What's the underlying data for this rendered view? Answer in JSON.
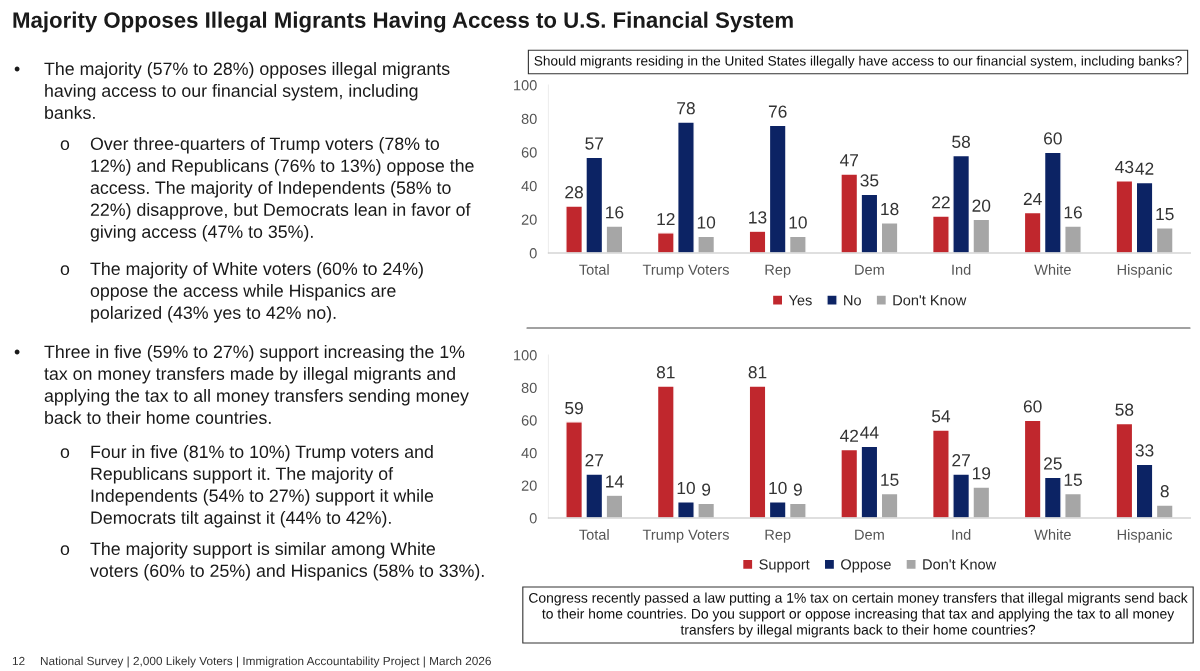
{
  "chart_data": [
    {
      "type": "bar",
      "title": "Majority Opposes Illegal Migrants Having Access to U.S. Financial System",
      "subtitle": "Should migrants residing in the United States illegally have access to our financial system, including banks?",
      "categories": [
        "Total",
        "Trump Voters",
        "Rep",
        "Dem",
        "Ind",
        "White",
        "Hispanic"
      ],
      "series": [
        {
          "name": "Yes",
          "color": "#c0272d",
          "values": [
            28,
            12,
            13,
            47,
            22,
            24,
            43
          ]
        },
        {
          "name": "No",
          "color": "#0c2364",
          "values": [
            57,
            78,
            76,
            35,
            58,
            60,
            42
          ]
        },
        {
          "name": "Don't Know",
          "color": "#a6a6a6",
          "values": [
            16,
            10,
            10,
            18,
            20,
            16,
            15
          ]
        }
      ],
      "ylim": [
        0,
        100
      ],
      "yticks": [
        0,
        20,
        40,
        60,
        80,
        100
      ],
      "grid": false,
      "legend": "bottom",
      "data_labels": true,
      "annotations": [
        "• The majority (57% to 28%) opposes illegal migrants\nhaving access to our financial system, including\nbanks.",
        "o Over three-quarters of Trump voters (78% to\n12%) and Republicans (76% to 13%) oppose the\naccess. The majority of Independents (58% to\n22%) disapprove, but Democrats lean in favor of\ngiving access (47% to 35%).",
        "o The majority of White voters (60% to 24%)\noppose the access while Hispanics are\npolarized (43% yes to 42% no).",
        "12",
        "National Survey | 2,000 Likely Voters | Immigration Accountability Project | March 2026"
      ]
    },
    {
      "type": "bar",
      "subtitle": "Congress recently passed a law putting a 1% tax on certain money transfers that illegal migrants send back\nto their home countries. Do you support or oppose increasing that tax and applying the tax to all money\ntransfers by illegal migrants back to their home countries?",
      "categories": [
        "Total",
        "Trump Voters",
        "Rep",
        "Dem",
        "Ind",
        "White",
        "Hispanic"
      ],
      "series": [
        {
          "name": "Support",
          "color": "#c0272d",
          "values": [
            59,
            81,
            81,
            42,
            54,
            60,
            58
          ]
        },
        {
          "name": "Oppose",
          "color": "#0c2364",
          "values": [
            27,
            10,
            10,
            44,
            27,
            25,
            33
          ]
        },
        {
          "name": "Don't Know",
          "color": "#a6a6a6",
          "values": [
            14,
            9,
            9,
            15,
            19,
            15,
            8
          ]
        }
      ],
      "ylim": [
        0,
        100
      ],
      "yticks": [
        0,
        20,
        40,
        60,
        80,
        100
      ],
      "grid": false,
      "legend": "bottom",
      "data_labels": true,
      "annotations": [
        "• Three in five (59% to 27%) support increasing the 1%\ntax on money transfers made by illegal migrants and\napplying the tax to all money transfers sending money\nback to their home countries.",
        "o Four in five (81% to 10%) Trump voters and\nRepublicans support it. The majority of\nIndependents (54% to 27%) support it while\nDemocrats tilt against it (44% to 42%).",
        "o The majority support is similar among White\nvoters (60% to 25%) and Hispanics (58% to 33%)."
      ]
    }
  ]
}
